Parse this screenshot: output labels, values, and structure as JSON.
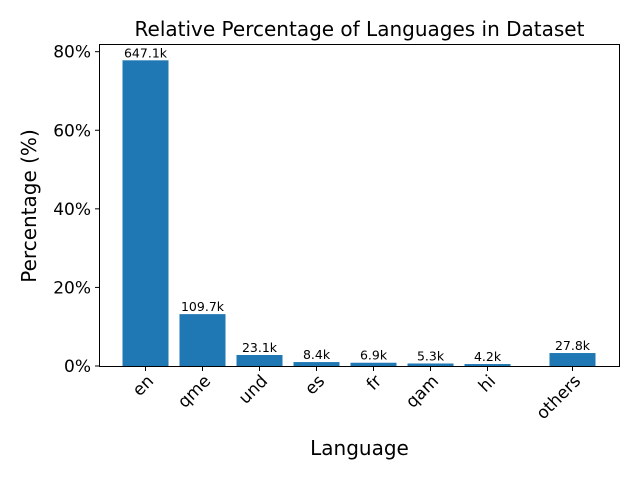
{
  "chart_data": {
    "type": "bar",
    "title": "Relative Percentage of Languages in Dataset",
    "xlabel": "Language",
    "ylabel": "Percentage (%)",
    "categories": [
      "en",
      "qme",
      "und",
      "es",
      "fr",
      "qam",
      "hi",
      "others"
    ],
    "values": [
      77.8,
      13.2,
      2.8,
      1.0,
      0.83,
      0.64,
      0.5,
      3.3
    ],
    "data_labels": [
      "647.1k",
      "109.7k",
      "23.1k",
      "8.4k",
      "6.9k",
      "5.3k",
      "4.2k",
      "27.8k"
    ],
    "y_ticks": [
      0,
      20,
      40,
      60,
      80
    ],
    "y_tick_labels": [
      "0%",
      "20%",
      "40%",
      "60%",
      "80%"
    ],
    "ylim": [
      0,
      81.7
    ],
    "bar_color": "#1f77b4",
    "grid": false
  }
}
